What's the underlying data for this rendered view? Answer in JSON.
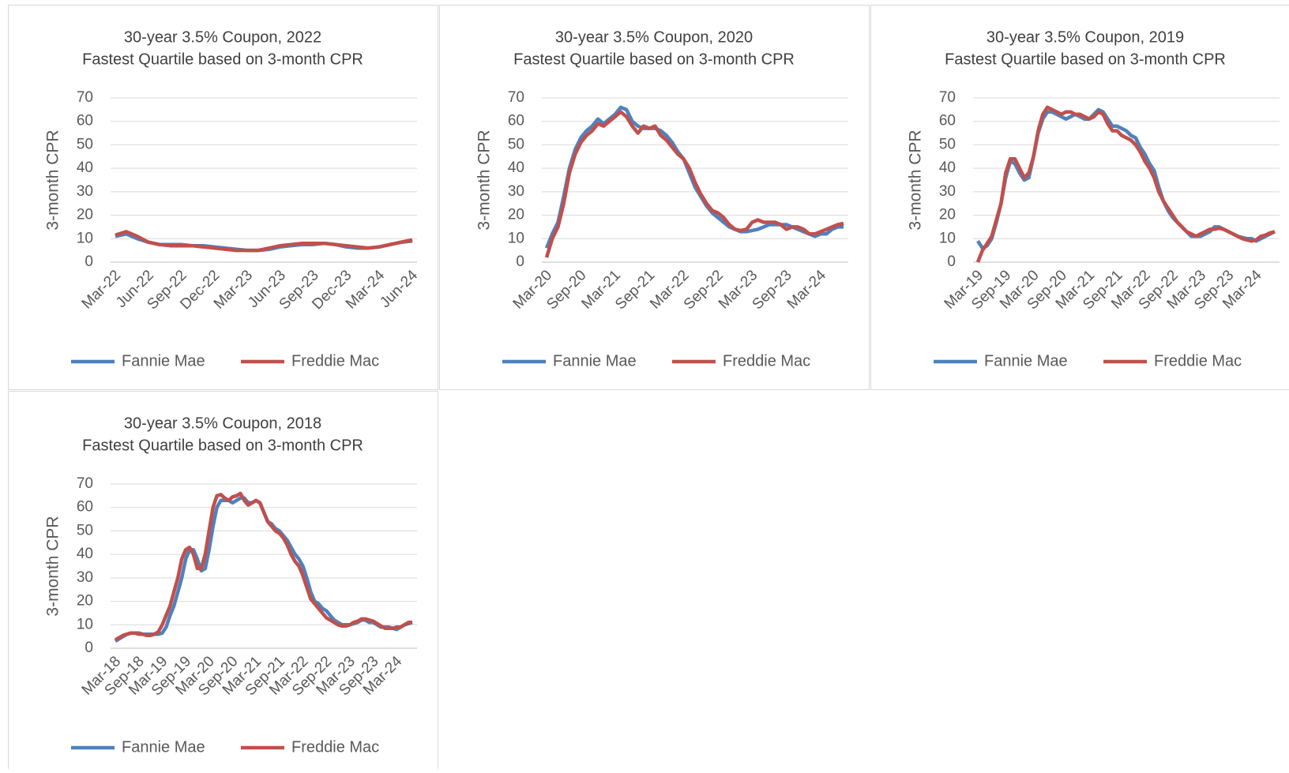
{
  "chart_data": [
    {
      "type": "line",
      "title": "30-year 3.5% Coupon, 2022",
      "subtitle": "Fastest Quartile based on 3-month CPR",
      "ylabel": "3-month CPR",
      "categories": [
        "Mar-22",
        null,
        null,
        "Jun-22",
        null,
        null,
        "Sep-22",
        null,
        null,
        "Dec-22",
        null,
        null,
        "Mar-23",
        null,
        null,
        "Jun-23",
        null,
        null,
        "Sep-23",
        null,
        null,
        "Dec-23",
        null,
        null,
        "Mar-24",
        null,
        null,
        "Jun-24"
      ],
      "series": [
        {
          "name": "Fannie Mae",
          "color": "#4f81bd",
          "values": [
            11,
            12,
            10,
            8.5,
            7.5,
            7.5,
            7.5,
            7,
            7,
            6.5,
            6,
            5.5,
            5,
            5,
            5.5,
            6.5,
            7,
            7.5,
            7.5,
            8,
            7.5,
            6.5,
            6,
            6,
            6.5,
            7.5,
            8.5,
            9
          ]
        },
        {
          "name": "Freddie Mac",
          "color": "#c0504d",
          "values": [
            11.5,
            13,
            11,
            8.5,
            7.5,
            7,
            7,
            7,
            6.5,
            6,
            5.5,
            5,
            5,
            5,
            6,
            7,
            7.5,
            8,
            8,
            8,
            7.5,
            7,
            6.5,
            6,
            6.5,
            7.5,
            8.5,
            9.5
          ]
        }
      ],
      "ylim": [
        0,
        70
      ],
      "yticks": [
        0,
        10,
        20,
        30,
        40,
        50,
        60,
        70
      ],
      "grid": true,
      "legend": "bottom"
    },
    {
      "type": "line",
      "title": "30-year 3.5% Coupon, 2020",
      "subtitle": "Fastest Quartile based on 3-month CPR",
      "ylabel": "3-month CPR",
      "categories": [
        "Mar-20",
        null,
        null,
        null,
        null,
        null,
        "Sep-20",
        null,
        null,
        null,
        null,
        null,
        "Mar-21",
        null,
        null,
        null,
        null,
        null,
        "Sep-21",
        null,
        null,
        null,
        null,
        null,
        "Mar-22",
        null,
        null,
        null,
        null,
        null,
        "Sep-22",
        null,
        null,
        null,
        null,
        null,
        "Mar-23",
        null,
        null,
        null,
        null,
        null,
        "Sep-23",
        null,
        null,
        null,
        null,
        null,
        "Mar-24",
        null,
        null,
        null,
        null
      ],
      "series": [
        {
          "name": "Fannie Mae",
          "color": "#4f81bd",
          "values": [
            6,
            12,
            17,
            28,
            40,
            48,
            53,
            56,
            58,
            61,
            59,
            61,
            63,
            66,
            65,
            60,
            58,
            57,
            57,
            57,
            56,
            54,
            51,
            47,
            44,
            38,
            32,
            28,
            24,
            21,
            19,
            17,
            15,
            14,
            13,
            13,
            13.5,
            14,
            15,
            16,
            16,
            16,
            16,
            15,
            14,
            13,
            12,
            11,
            12,
            12,
            14,
            15,
            15
          ]
        },
        {
          "name": "Freddie Mac",
          "color": "#c0504d",
          "values": [
            2,
            10,
            15,
            25,
            38,
            46,
            51,
            54,
            56,
            59,
            58,
            60,
            62,
            64,
            62,
            58,
            55,
            58,
            57,
            58,
            54,
            52,
            49,
            46,
            44,
            40,
            34,
            29,
            25,
            22,
            21,
            19,
            16,
            14,
            13.5,
            14,
            17,
            18,
            17,
            17,
            17,
            16,
            14,
            15,
            15,
            14,
            12,
            12,
            13,
            14,
            15,
            16,
            16.5
          ]
        }
      ],
      "ylim": [
        0,
        70
      ],
      "yticks": [
        0,
        10,
        20,
        30,
        40,
        50,
        60,
        70
      ],
      "grid": true,
      "legend": "bottom"
    },
    {
      "type": "line",
      "title": "30-year 3.5% Coupon, 2019",
      "subtitle": "Fastest Quartile based on 3-month CPR",
      "ylabel": "3-month CPR",
      "categories": [
        "Mar-19",
        null,
        null,
        null,
        null,
        null,
        "Sep-19",
        null,
        null,
        null,
        null,
        null,
        "Mar-20",
        null,
        null,
        null,
        null,
        null,
        "Sep-20",
        null,
        null,
        null,
        null,
        null,
        "Mar-21",
        null,
        null,
        null,
        null,
        null,
        "Sep-21",
        null,
        null,
        null,
        null,
        null,
        "Mar-22",
        null,
        null,
        null,
        null,
        null,
        "Sep-22",
        null,
        null,
        null,
        null,
        null,
        "Mar-23",
        null,
        null,
        null,
        null,
        null,
        "Sep-23",
        null,
        null,
        null,
        null,
        null,
        "Mar-24",
        null,
        null,
        null,
        null
      ],
      "series": [
        {
          "name": "Fannie Mae",
          "color": "#4f81bd",
          "values": [
            9,
            6,
            7,
            10,
            17,
            25,
            36,
            43,
            42,
            38,
            35,
            36,
            45,
            55,
            61,
            64,
            64,
            63,
            62,
            61,
            62,
            63,
            62,
            61,
            61,
            63,
            65,
            64,
            61,
            58,
            58,
            57,
            56,
            54,
            53,
            49,
            46,
            42,
            39,
            32,
            26,
            22,
            19,
            17,
            15,
            13,
            11,
            11,
            11,
            12,
            13,
            15,
            15,
            14,
            13,
            12,
            11,
            10.5,
            10,
            10,
            9,
            10,
            11,
            12,
            13
          ]
        },
        {
          "name": "Freddie Mac",
          "color": "#c0504d",
          "values": [
            0,
            5,
            8,
            11,
            18,
            25,
            38,
            44,
            44,
            40,
            36,
            38,
            45,
            56,
            63,
            66,
            65,
            64,
            63,
            64,
            64,
            63,
            63,
            62,
            61,
            62,
            64,
            63,
            59,
            56,
            56,
            54,
            53,
            52,
            50,
            47,
            43,
            40,
            36,
            30,
            26,
            23,
            20,
            17,
            15,
            13,
            12,
            11,
            12,
            13,
            14,
            14,
            14.5,
            14,
            13,
            12,
            11,
            10,
            9.5,
            9,
            9.5,
            11,
            11.5,
            12.5,
            13
          ]
        }
      ],
      "ylim": [
        0,
        70
      ],
      "yticks": [
        0,
        10,
        20,
        30,
        40,
        50,
        60,
        70
      ],
      "grid": true,
      "legend": "bottom"
    },
    {
      "type": "line",
      "title": "30-year 3.5% Coupon, 2018",
      "subtitle": "Fastest Quartile based on 3-month CPR",
      "ylabel": "3-month CPR",
      "categories": [
        "Mar-18",
        null,
        null,
        null,
        null,
        null,
        "Sep-18",
        null,
        null,
        null,
        null,
        null,
        "Mar-19",
        null,
        null,
        null,
        null,
        null,
        "Sep-19",
        null,
        null,
        null,
        null,
        null,
        "Mar-20",
        null,
        null,
        null,
        null,
        null,
        "Sep-20",
        null,
        null,
        null,
        null,
        null,
        "Mar-21",
        null,
        null,
        null,
        null,
        null,
        "Sep-21",
        null,
        null,
        null,
        null,
        null,
        "Mar-22",
        null,
        null,
        null,
        null,
        null,
        "Sep-22",
        null,
        null,
        null,
        null,
        null,
        "Mar-23",
        null,
        null,
        null,
        null,
        null,
        "Sep-23",
        null,
        null,
        null,
        null,
        null,
        "Mar-24",
        null,
        null,
        null,
        null
      ],
      "series": [
        {
          "name": "Fannie Mae",
          "color": "#4f81bd",
          "values": [
            3,
            4,
            5,
            6,
            6.5,
            6.5,
            6.5,
            6,
            6,
            6,
            6,
            6,
            6.5,
            9,
            14,
            18,
            24,
            30,
            38,
            42,
            42,
            38,
            33,
            34,
            42,
            52,
            60,
            63,
            63,
            63,
            62,
            63,
            64,
            64,
            62,
            62,
            63,
            62,
            58,
            54,
            53,
            51,
            50,
            48,
            46,
            43,
            40,
            38,
            35,
            30,
            24,
            20,
            19,
            17,
            16,
            14,
            12,
            11,
            10,
            10,
            10,
            10.5,
            11,
            12,
            12,
            11,
            11,
            10,
            9,
            9,
            9,
            8.5,
            8,
            9,
            10,
            10.5,
            11
          ]
        },
        {
          "name": "Freddie Mac",
          "color": "#c0504d",
          "values": [
            3.5,
            4.5,
            5.5,
            6,
            6.5,
            6.5,
            6,
            6,
            5.5,
            5.5,
            6,
            7,
            10,
            14,
            18,
            24,
            30,
            38,
            42,
            43,
            40,
            34,
            34,
            40,
            50,
            60,
            65,
            65.5,
            64,
            63,
            64.5,
            65,
            66,
            63,
            61,
            62,
            63,
            62,
            58,
            54,
            52,
            50,
            49,
            47,
            44,
            40,
            37,
            35,
            31,
            26,
            21,
            19,
            17,
            15,
            13,
            12,
            11,
            10,
            9.5,
            9.5,
            10,
            11,
            11.5,
            12.5,
            12.5,
            12,
            11.5,
            10.5,
            9.5,
            8.5,
            8.5,
            8.5,
            9,
            9,
            10,
            11,
            11
          ]
        }
      ],
      "ylim": [
        0,
        70
      ],
      "yticks": [
        0,
        10,
        20,
        30,
        40,
        50,
        60,
        70
      ],
      "grid": true,
      "legend": "bottom"
    }
  ]
}
